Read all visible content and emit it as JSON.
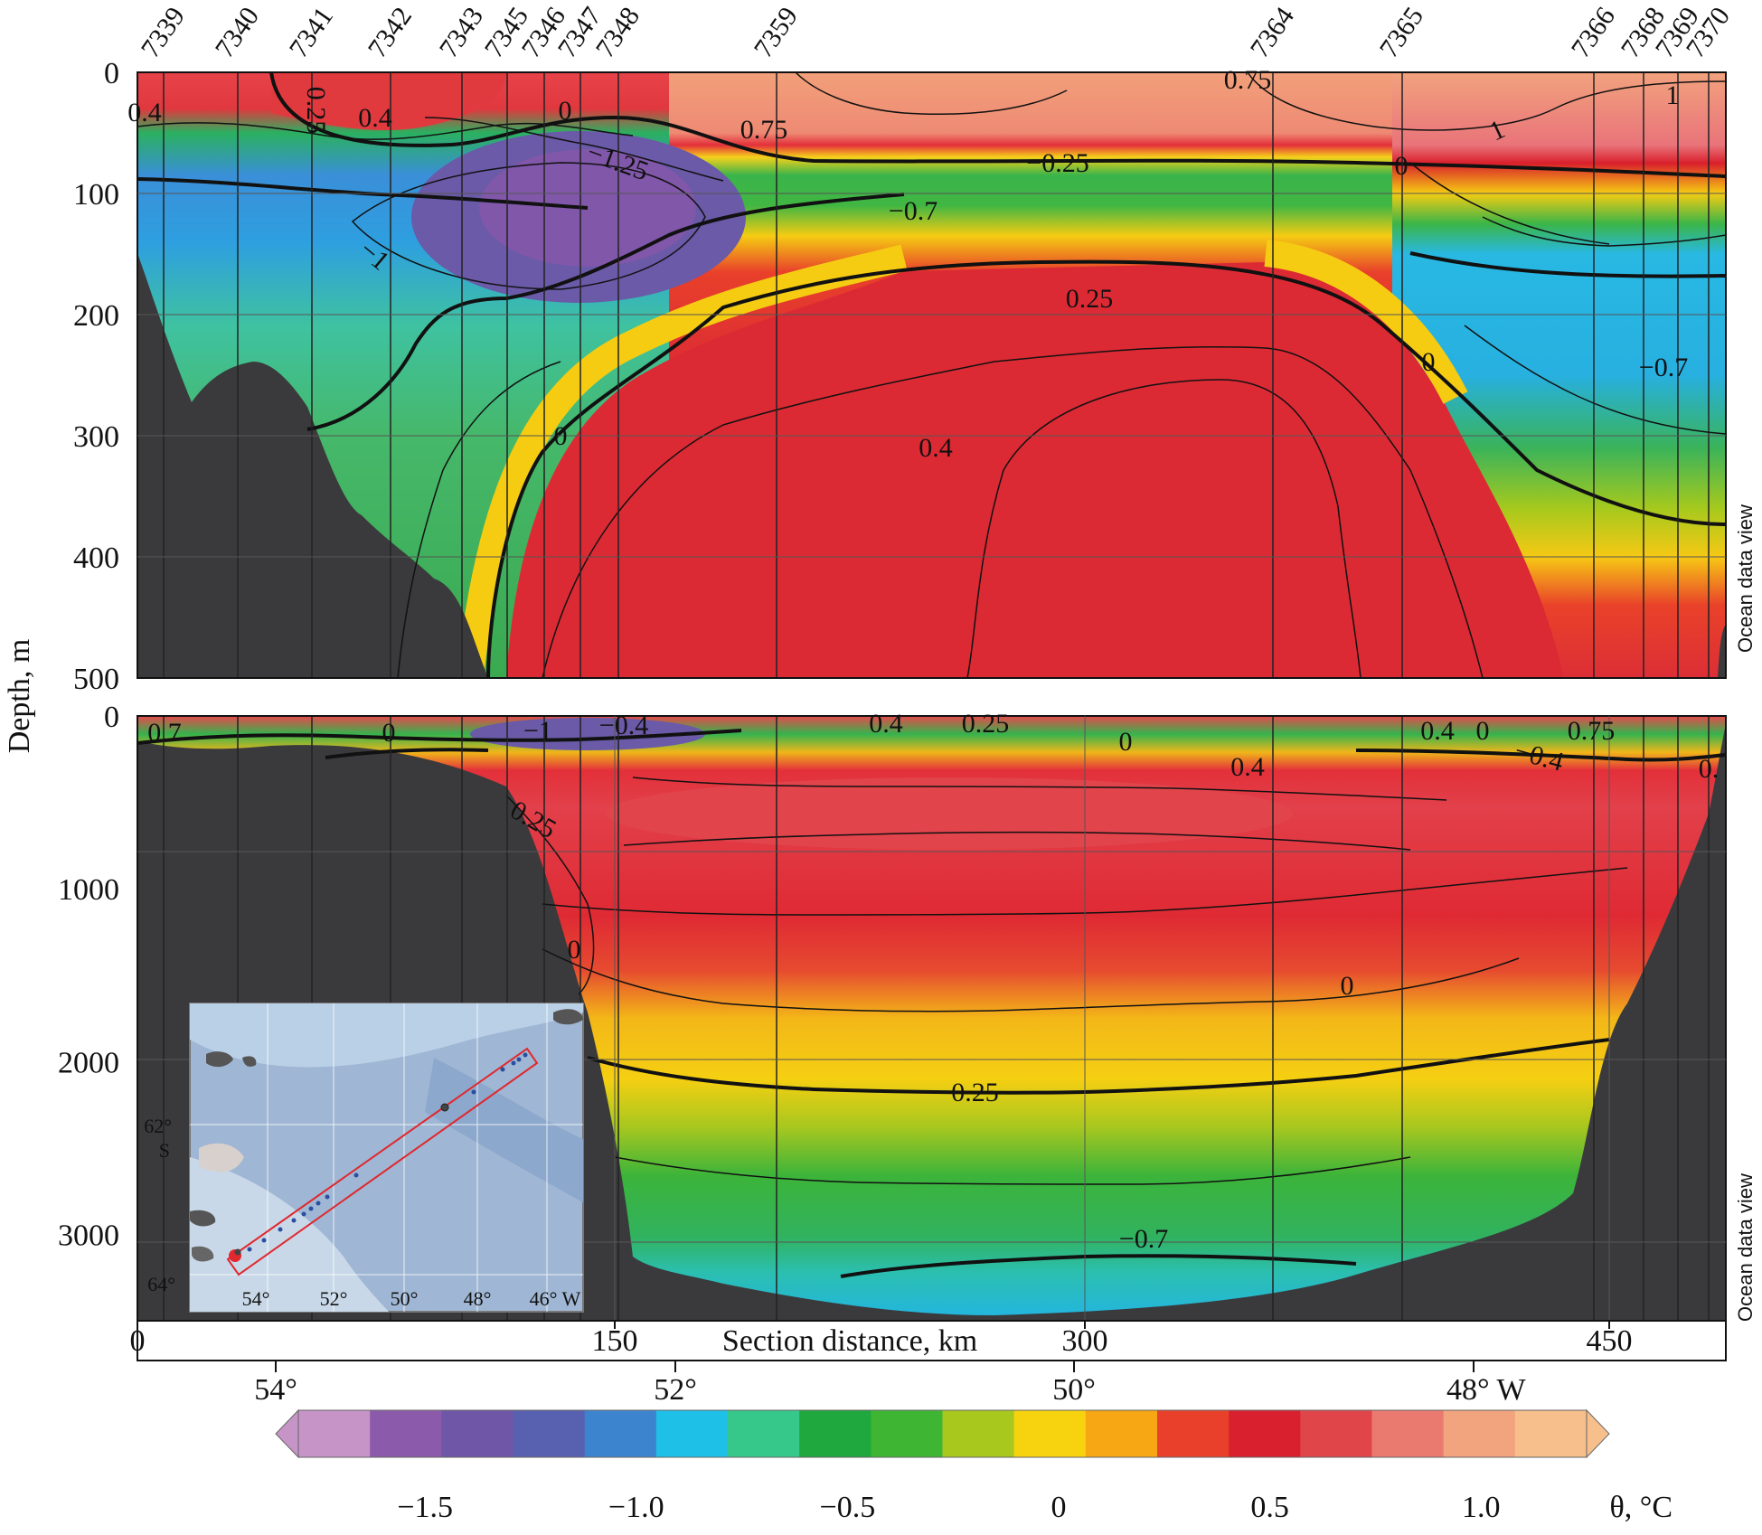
{
  "chart_data": [
    {
      "type": "heatmap",
      "panel": "upper",
      "variable": "θ, °C",
      "ylabel": "Depth, m",
      "ylim": [
        500,
        0
      ],
      "yticks": [
        0,
        100,
        200,
        300,
        400,
        500
      ],
      "x_range_km": [
        0,
        505
      ],
      "stations": [
        "7339",
        "7340",
        "7341",
        "7342",
        "7343",
        "7345",
        "7346",
        "7347",
        "7348",
        "7359",
        "7364",
        "7365",
        "7366",
        "7368",
        "7369",
        "7370"
      ],
      "contour_labels": [
        "0.4",
        "0.25",
        "0.4",
        "0",
        "0.75",
        "0.75",
        "1",
        "1",
        "-1.25",
        "-1",
        "-0.25",
        "0",
        "-0.7",
        "0.25",
        "0",
        "0.4",
        "0",
        "-0.7"
      ],
      "watermark": "Ocean data view"
    },
    {
      "type": "heatmap",
      "panel": "lower",
      "variable": "θ, °C",
      "ylim": [
        3500,
        0
      ],
      "yticks": [
        0,
        1000,
        2000,
        3000
      ],
      "xlabel": "Section distance, km",
      "xticks_km": [
        0,
        150,
        300,
        450
      ],
      "longitude_ticks": [
        "54°",
        "52°",
        "50°",
        "48°  W"
      ],
      "contour_labels": [
        "0.7",
        "0",
        "-1",
        "-0.4",
        "0.4",
        "0.25",
        "0",
        "0.4",
        "0.4",
        "0.75",
        "0",
        "-0.4",
        "0.",
        "0.25",
        "0",
        "0",
        "-0.25",
        "-0.7"
      ],
      "watermark": "Ocean data view"
    }
  ],
  "colorbar": {
    "label": "θ, °C",
    "range": [
      -1.8,
      1.25
    ],
    "ticks": [
      "−1.5",
      "−1.0",
      "−0.5",
      "0",
      "0.5",
      "1.0"
    ],
    "tick_values": [
      -1.5,
      -1.0,
      -0.5,
      0,
      0.5,
      1.0
    ],
    "colors": [
      "#c794c8",
      "#8c5aaa",
      "#6f56a6",
      "#5860b0",
      "#3d84cf",
      "#1ec0e8",
      "#36c78a",
      "#1ea83e",
      "#3fb534",
      "#a8c81e",
      "#f7d20f",
      "#f7a614",
      "#e8402a",
      "#d8202e",
      "#e0454a",
      "#ea7a70",
      "#f2a47e",
      "#f6bf8c"
    ]
  },
  "inset_map": {
    "lon_ticks": [
      "54°",
      "52°",
      "50°",
      "48°",
      "46° W"
    ],
    "lat_ticks": [
      "62°\nS",
      "64°"
    ],
    "lat_tick_top": "62°",
    "lat_tick_top_hemi": "S",
    "lat_tick_bottom": "64°"
  }
}
